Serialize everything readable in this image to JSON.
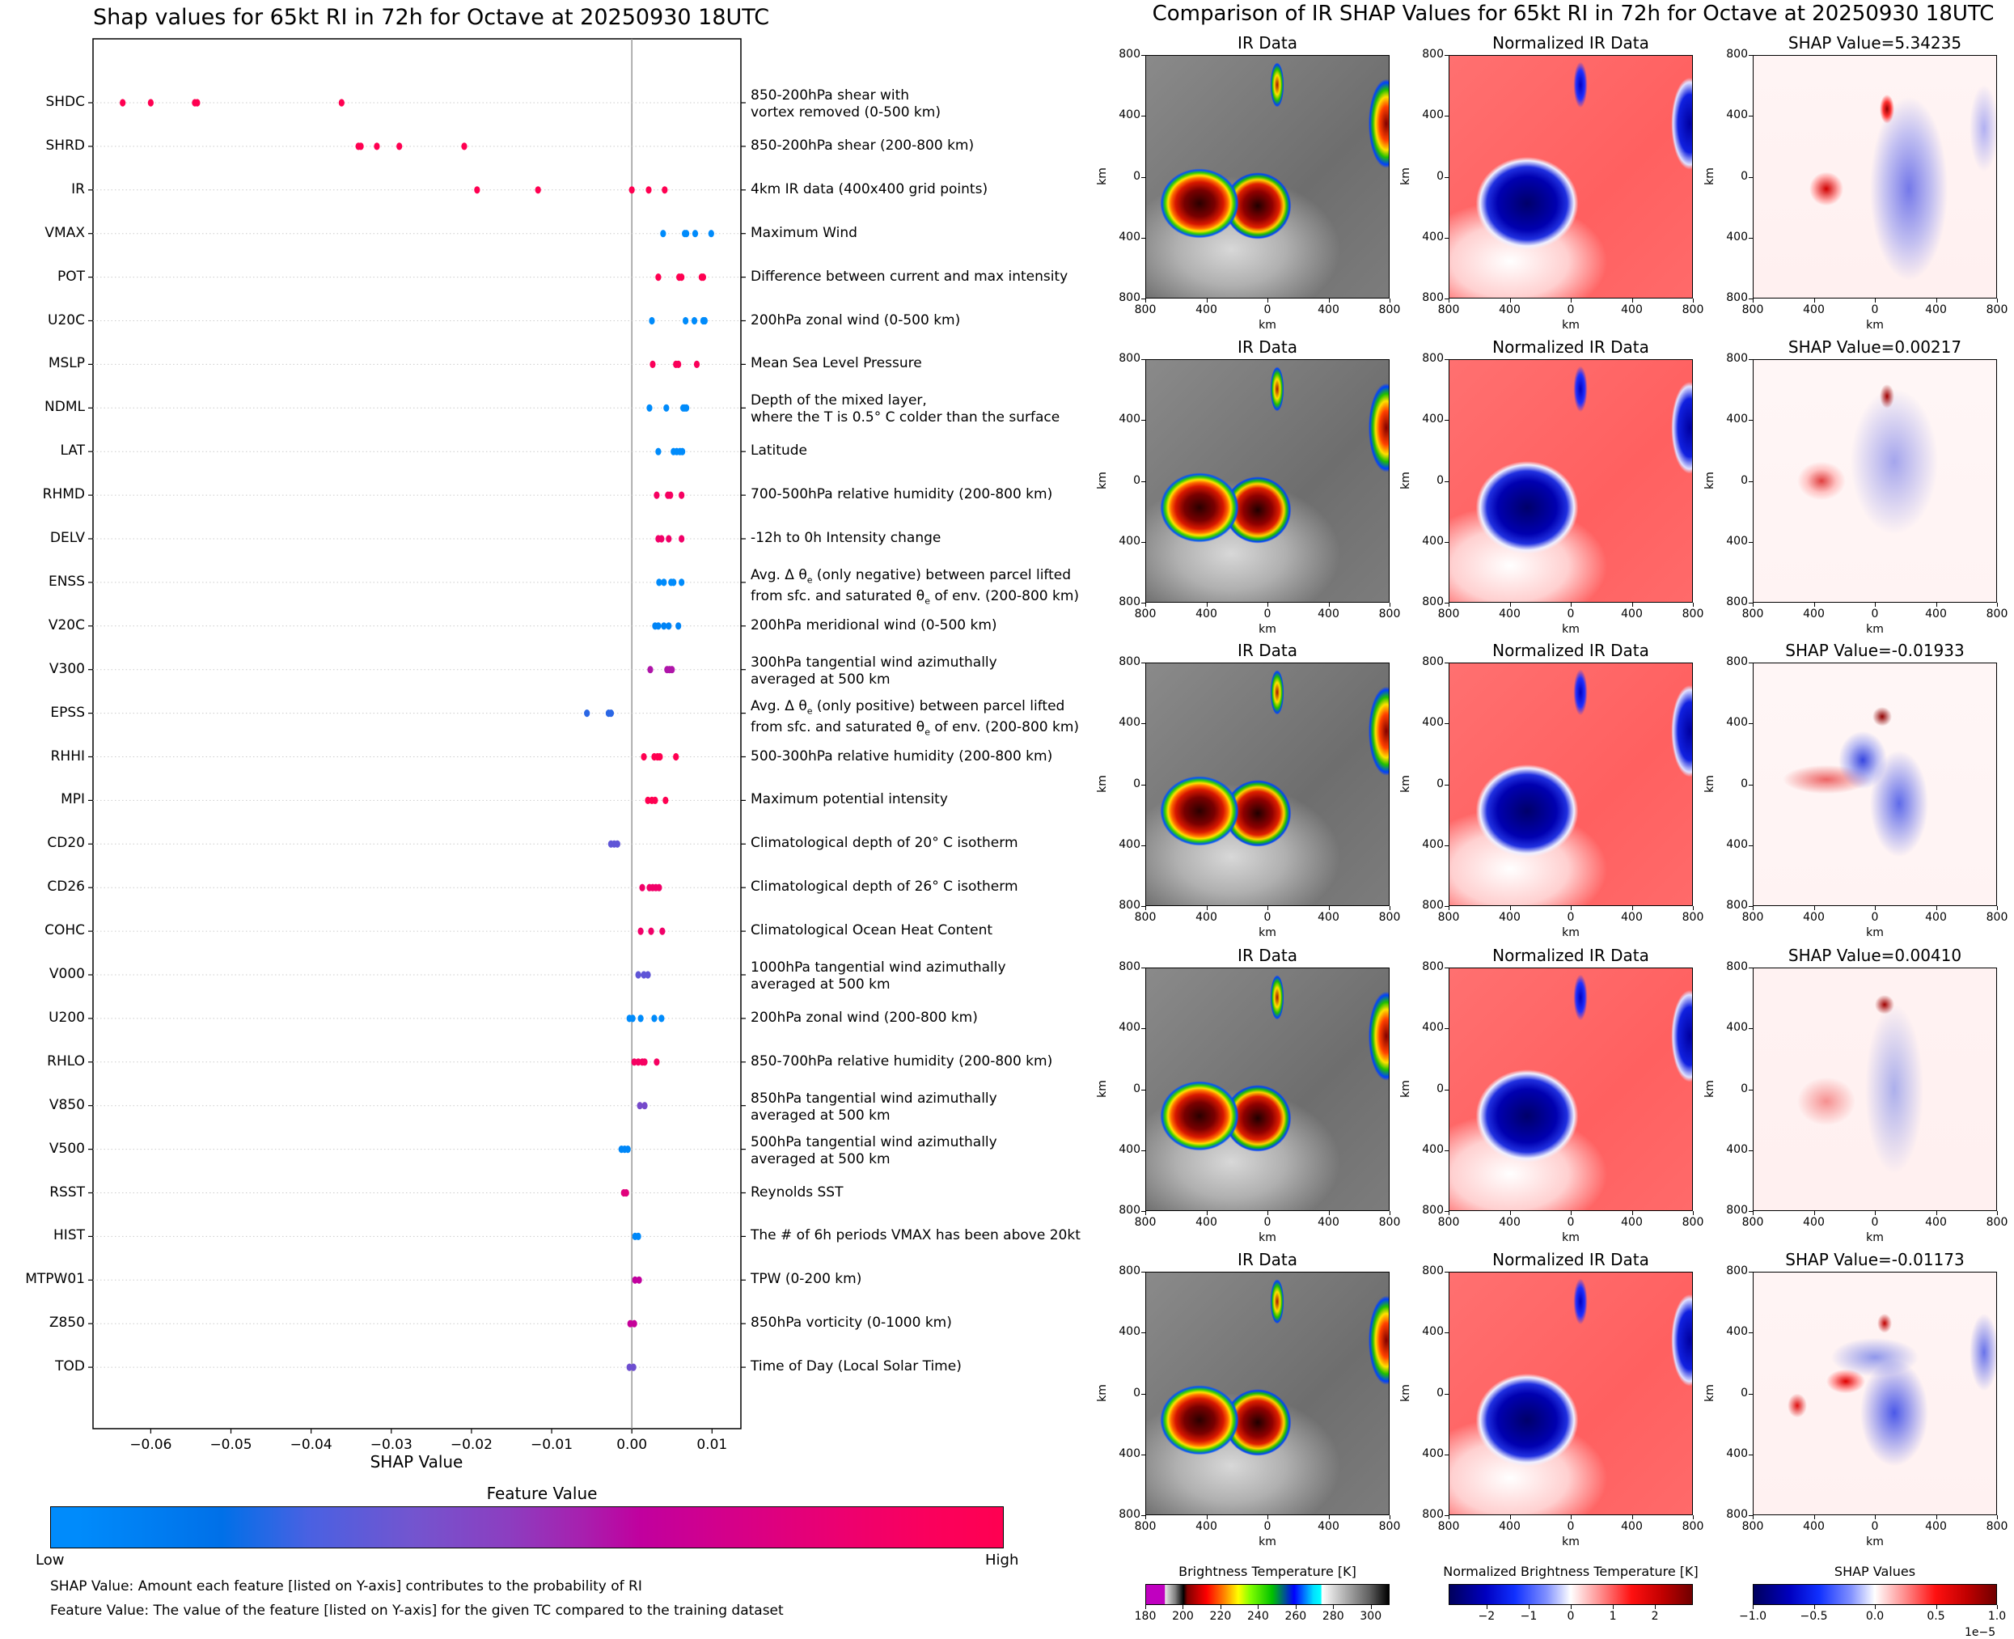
{
  "left": {
    "title": "Shap values for 65kt RI in 72h for Octave at 20250930 18UTC",
    "xlabel": "SHAP Value",
    "colorbar_title": "Feature Value",
    "colorbar_low": "Low",
    "colorbar_high": "High",
    "footnote_1": "SHAP Value: Amount each feature [listed on Y-axis] contributes to the probability of RI",
    "footnote_2": "Feature Value: The value of the feature [listed on Y-axis] for the given TC compared to the training dataset"
  },
  "right": {
    "title": "Comparison of IR SHAP Values for 65kt RI in 72h for Octave at 20250930 18UTC",
    "col_titles": [
      "IR Data",
      "Normalized IR Data"
    ],
    "shap_titles": [
      "SHAP Value=5.34235",
      "SHAP Value=0.00217",
      "SHAP Value=-0.01933",
      "SHAP Value=0.00410",
      "SHAP Value=-0.01173"
    ],
    "axis_ticks": [
      "800",
      "400",
      "0",
      "400",
      "800"
    ],
    "axis_label": "km",
    "colorbars": [
      {
        "title": "Brightness Temperature [K]",
        "ticks": [
          "180",
          "200",
          "220",
          "240",
          "260",
          "280",
          "300"
        ],
        "range": [
          180,
          310
        ]
      },
      {
        "title": "Normalized Brightness Temperature [K]",
        "ticks": [
          "−2",
          "−1",
          "0",
          "1",
          "2"
        ],
        "range": [
          -2.9,
          2.9
        ]
      },
      {
        "title": "SHAP Values",
        "ticks": [
          "−1.0",
          "−0.5",
          "0.0",
          "0.5",
          "1.0"
        ],
        "range": [
          -1.0,
          1.0
        ],
        "offset_label": "1e−5"
      }
    ]
  },
  "chart_data": [
    {
      "type": "scatter",
      "title": "Shap values for 65kt RI in 72h for Octave at 20250930 18UTC",
      "xlabel": "SHAP Value",
      "ylabel": "",
      "xlim": [
        -0.0672,
        0.0136
      ],
      "xticks": [
        -0.06,
        -0.05,
        -0.04,
        -0.03,
        -0.02,
        -0.01,
        0.0,
        0.01
      ],
      "xtick_labels": [
        "−0.06",
        "−0.05",
        "−0.04",
        "−0.03",
        "−0.02",
        "−0.01",
        "0.00",
        "0.01"
      ],
      "grid": "horizontal dotted per feature",
      "colorbar": {
        "label": "Feature Value",
        "low": "Low",
        "high": "High",
        "colors": [
          "#008bfb",
          "#0070e8",
          "#8a3cc0",
          "#c8009a",
          "#ff0051"
        ]
      },
      "features": [
        {
          "name": "SHDC",
          "desc": "850-200hPa shear with\nvortex removed (0-500 km)",
          "values": [
            -0.0635,
            -0.06,
            -0.0545,
            -0.0542,
            -0.0362
          ],
          "fv": [
            1,
            1,
            1,
            1,
            1
          ]
        },
        {
          "name": "SHRD",
          "desc": "850-200hPa shear (200-800 km)",
          "values": [
            -0.0341,
            -0.0338,
            -0.0318,
            -0.029,
            -0.0209
          ],
          "fv": [
            1,
            1,
            1,
            1,
            1
          ]
        },
        {
          "name": "IR",
          "desc": "4km IR data (400x400 grid points)",
          "values": [
            -0.0193,
            -0.0117,
            0.0,
            0.0021,
            0.0041
          ],
          "fv": [
            1,
            1,
            1,
            1,
            1
          ]
        },
        {
          "name": "VMAX",
          "desc": "Maximum Wind",
          "values": [
            0.0039,
            0.0066,
            0.0068,
            0.0079,
            0.0099
          ],
          "fv": [
            0,
            0,
            0,
            0,
            0
          ]
        },
        {
          "name": "POT",
          "desc": "Difference between current and max intensity",
          "values": [
            0.0033,
            0.0059,
            0.0062,
            0.0087,
            0.0089
          ],
          "fv": [
            1,
            1,
            1,
            1,
            1
          ]
        },
        {
          "name": "U20C",
          "desc": "200hPa zonal wind (0-500 km)",
          "values": [
            0.0025,
            0.0067,
            0.0078,
            0.0089,
            0.0091
          ],
          "fv": [
            0,
            0,
            0,
            0,
            0
          ]
        },
        {
          "name": "MSLP",
          "desc": "Mean Sea Level Pressure",
          "values": [
            0.0026,
            0.0055,
            0.0058,
            0.0081
          ],
          "fv": [
            0.95,
            0.95,
            0.95,
            0.95
          ]
        },
        {
          "name": "NDML",
          "desc": "Depth of the mixed layer,\nwhere the T is 0.5° C colder than the surface",
          "values": [
            0.0022,
            0.0043,
            0.0064,
            0.0066,
            0.0068
          ],
          "fv": [
            0,
            0,
            0,
            0,
            0
          ]
        },
        {
          "name": "LAT",
          "desc": "Latitude",
          "values": [
            0.0033,
            0.0052,
            0.0056,
            0.006,
            0.0063
          ],
          "fv": [
            0,
            0,
            0,
            0,
            0
          ]
        },
        {
          "name": "RHMD",
          "desc": "700-500hPa relative humidity (200-800 km)",
          "values": [
            0.0031,
            0.0045,
            0.0048,
            0.0062
          ],
          "fv": [
            0.9,
            0.9,
            0.9,
            0.9
          ]
        },
        {
          "name": "DELV",
          "desc": "-12h to 0h Intensity change",
          "values": [
            0.0033,
            0.0037,
            0.0046,
            0.0062
          ],
          "fv": [
            0.85,
            0.85,
            0.85,
            0.85
          ]
        },
        {
          "name": "ENSS",
          "desc": "Avg. Δ θe (only negative) between parcel lifted\nfrom sfc. and saturated θe of env. (200-800 km)",
          "values": [
            0.0034,
            0.004,
            0.0049,
            0.0052,
            0.0062
          ],
          "fv": [
            0,
            0,
            0,
            0,
            0
          ]
        },
        {
          "name": "V20C",
          "desc": "200hPa meridional wind (0-500 km)",
          "values": [
            0.0029,
            0.0033,
            0.004,
            0.0046,
            0.0058
          ],
          "fv": [
            0.05,
            0.05,
            0.05,
            0.05,
            0.05
          ]
        },
        {
          "name": "V300",
          "desc": "300hPa tangential wind azimuthally\naveraged at 500 km",
          "values": [
            0.0023,
            0.0044,
            0.0047,
            0.005
          ],
          "fv": [
            0.55,
            0.55,
            0.55,
            0.55
          ]
        },
        {
          "name": "EPSS",
          "desc": "Avg. Δ θe (only positive) between parcel lifted\nfrom sfc. and saturated θe of env. (200-800 km)",
          "values": [
            -0.0056,
            -0.0029,
            -0.0026
          ],
          "fv": [
            0.25,
            0.25,
            0.25
          ]
        },
        {
          "name": "RHHI",
          "desc": "500-300hPa relative humidity (200-800 km)",
          "values": [
            0.0015,
            0.0028,
            0.0032,
            0.0035,
            0.0055
          ],
          "fv": [
            1,
            1,
            1,
            1,
            1
          ]
        },
        {
          "name": "MPI",
          "desc": "Maximum potential intensity",
          "values": [
            0.002,
            0.0025,
            0.0029,
            0.0042
          ],
          "fv": [
            1,
            1,
            1,
            1
          ]
        },
        {
          "name": "CD20",
          "desc": "Climatological depth of 20° C isotherm",
          "values": [
            -0.0026,
            -0.0022,
            -0.0018
          ],
          "fv": [
            0.35,
            0.35,
            0.35
          ]
        },
        {
          "name": "CD26",
          "desc": "Climatological depth of 26° C isotherm",
          "values": [
            0.0013,
            0.0022,
            0.0026,
            0.003,
            0.0034
          ],
          "fv": [
            0.85,
            0.85,
            0.85,
            0.85,
            0.85
          ]
        },
        {
          "name": "COHC",
          "desc": "Climatological Ocean Heat Content",
          "values": [
            0.0011,
            0.0024,
            0.0038
          ],
          "fv": [
            0.85,
            0.85,
            0.85
          ]
        },
        {
          "name": "V000",
          "desc": "1000hPa tangential wind azimuthally\naveraged at 500 km",
          "values": [
            0.0008,
            0.0015,
            0.002
          ],
          "fv": [
            0.35,
            0.35,
            0.35
          ]
        },
        {
          "name": "U200",
          "desc": "200hPa zonal wind (200-800 km)",
          "values": [
            -0.0003,
            0.0001,
            0.0011,
            0.0028,
            0.0037
          ],
          "fv": [
            0,
            0,
            0,
            0,
            0
          ]
        },
        {
          "name": "RHLO",
          "desc": "850-700hPa relative humidity (200-800 km)",
          "values": [
            0.0003,
            0.0008,
            0.0013,
            0.0016,
            0.0031
          ],
          "fv": [
            0.9,
            0.9,
            0.9,
            0.9,
            0.9
          ]
        },
        {
          "name": "V850",
          "desc": "850hPa tangential wind azimuthally\naveraged at 500 km",
          "values": [
            0.001,
            0.0016
          ],
          "fv": [
            0.4,
            0.4
          ]
        },
        {
          "name": "V500",
          "desc": "500hPa tangential wind azimuthally\naveraged at 500 km",
          "values": [
            -0.0013,
            -0.0009,
            -0.0005
          ],
          "fv": [
            0.03,
            0.03,
            0.03
          ]
        },
        {
          "name": "RSST",
          "desc": "Reynolds SST",
          "values": [
            -0.001,
            -0.0007
          ],
          "fv": [
            0.75,
            0.75
          ]
        },
        {
          "name": "HIST",
          "desc": "The # of 6h periods VMAX has been above 20kt",
          "values": [
            0.0004,
            0.0008
          ],
          "fv": [
            0.02,
            0.02
          ]
        },
        {
          "name": "MTPW01",
          "desc": "TPW (0-200 km)",
          "values": [
            0.0004,
            0.0009
          ],
          "fv": [
            0.6,
            0.6
          ]
        },
        {
          "name": "Z850",
          "desc": "850hPa vorticity (0-1000 km)",
          "values": [
            -0.0002,
            0.0003
          ],
          "fv": [
            0.62,
            0.62
          ]
        },
        {
          "name": "TOD",
          "desc": "Time of Day (Local Solar Time)",
          "values": [
            -0.0003,
            0.0002
          ],
          "fv": [
            0.38,
            0.38
          ]
        }
      ]
    },
    {
      "type": "heatmap",
      "title": "Comparison of IR SHAP Values for 65kt RI in 72h for Octave at 20250930 18UTC",
      "rows": 5,
      "columns": [
        "IR Data",
        "Normalized IR Data",
        "SHAP"
      ],
      "shap_values": [
        5.34235,
        0.00217,
        -0.01933,
        0.0041,
        -0.01173
      ],
      "xlabel": "km",
      "ylabel": "km",
      "xlim": [
        -800,
        800
      ],
      "ylim": [
        -800,
        800
      ],
      "tick_labels": [
        "800",
        "400",
        "0",
        "400",
        "800"
      ]
    }
  ]
}
